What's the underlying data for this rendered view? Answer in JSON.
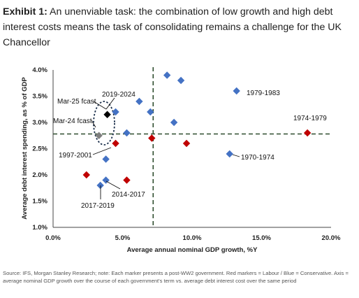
{
  "exhibit": {
    "label": "Exhibit 1:",
    "title": "An unenviable task: the combination of low growth and high debt interest costs means the task of consolidating remains a challenge for the UK Chancellor"
  },
  "source_note": "Source: IFS, Morgan Stanley Research; note: Each marker presents a post-WW2 government. Red markers = Labour / Blue = Conservative. Axis = average nominal GDP growth over the course of each government's term vs. average debt interest cost over the same period",
  "colors": {
    "labour": "#c00000",
    "conservative": "#4472c4",
    "forecast": "#000000",
    "forecast_prior": "#7f7f7f",
    "refline": "#2e4d2e"
  },
  "chart_data": {
    "type": "scatter",
    "xlabel": "Average annual nominal GDP growth, %Y",
    "ylabel": "Average debt interest spending, as % of GDP",
    "xlim": [
      0,
      20
    ],
    "ylim": [
      1,
      4
    ],
    "x_ticks": [
      "0.0%",
      "5.0%",
      "10.0%",
      "15.0%",
      "20.0%"
    ],
    "y_ticks": [
      "1.0%",
      "1.5%",
      "2.0%",
      "2.5%",
      "3.0%",
      "3.5%",
      "4.0%"
    ],
    "reference_lines": {
      "x": 7.2,
      "y": 2.78
    },
    "series": [
      {
        "name": "Labour",
        "points": [
          [
            2.4,
            2.0
          ],
          [
            4.5,
            2.6
          ],
          [
            5.3,
            1.9
          ],
          [
            7.1,
            2.7
          ],
          [
            9.6,
            2.6
          ],
          [
            18.3,
            2.8
          ]
        ]
      },
      {
        "name": "Conservative",
        "points": [
          [
            4.5,
            3.2
          ],
          [
            6.2,
            3.4
          ],
          [
            7.0,
            3.2
          ],
          [
            8.2,
            3.9
          ],
          [
            9.2,
            3.8
          ],
          [
            8.7,
            3.0
          ],
          [
            13.2,
            3.6
          ],
          [
            12.7,
            2.4
          ],
          [
            5.3,
            2.8
          ],
          [
            3.8,
            2.3
          ],
          [
            3.4,
            1.8
          ],
          [
            3.8,
            1.9
          ]
        ]
      },
      {
        "name": "Mar-25 fcast",
        "points": [
          [
            3.9,
            3.15
          ]
        ]
      },
      {
        "name": "Mar-24 fcast",
        "points": [
          [
            3.3,
            2.75
          ]
        ]
      }
    ],
    "annotations": [
      "Mar-25 fcast",
      "Mar-24 fcast",
      "2019-2024",
      "1997-2001",
      "2014-2017",
      "2017-2019",
      "1979-1983",
      "1974-1979",
      "1970-1974"
    ]
  }
}
